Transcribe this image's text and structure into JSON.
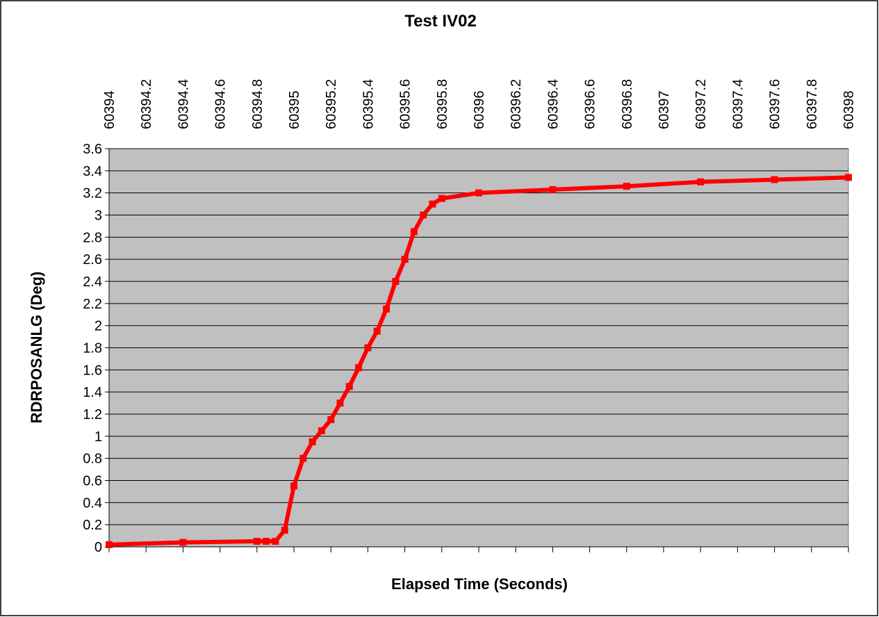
{
  "chart_data": {
    "type": "line",
    "title": "Test IV02",
    "x_label": "Elapsed Time (Seconds)",
    "y_label": "RDRPOSANLG (Deg)",
    "x": [
      60394.0,
      60394.4,
      60394.8,
      60394.85,
      60394.9,
      60394.95,
      60395.0,
      60395.05,
      60395.1,
      60395.15,
      60395.2,
      60395.25,
      60395.3,
      60395.35,
      60395.4,
      60395.45,
      60395.5,
      60395.55,
      60395.6,
      60395.65,
      60395.7,
      60395.75,
      60395.8,
      60396.0,
      60396.4,
      60396.8,
      60397.2,
      60397.6,
      60398.0
    ],
    "series": [
      {
        "color": "#ff0000",
        "values": [
          0.02,
          0.04,
          0.05,
          0.05,
          0.05,
          0.15,
          0.55,
          0.8,
          0.95,
          1.05,
          1.15,
          1.3,
          1.45,
          1.62,
          1.8,
          1.95,
          2.15,
          2.4,
          2.6,
          2.85,
          3.0,
          3.1,
          3.15,
          3.2,
          3.23,
          3.26,
          3.3,
          3.32,
          3.34
        ]
      }
    ],
    "xlim": [
      60394,
      60398
    ],
    "xticks": [
      60394,
      60394.2,
      60394.4,
      60394.6,
      60394.8,
      60395,
      60395.2,
      60395.4,
      60395.6,
      60395.8,
      60396,
      60396.2,
      60396.4,
      60396.6,
      60396.8,
      60397,
      60397.2,
      60397.4,
      60397.6,
      60397.8,
      60398
    ],
    "ylim": [
      0,
      3.6
    ],
    "yticks": [
      0,
      0.2,
      0.4,
      0.6,
      0.8,
      1,
      1.2,
      1.4,
      1.6,
      1.8,
      2,
      2.2,
      2.4,
      2.6,
      2.8,
      3,
      3.2,
      3.4,
      3.6
    ],
    "grid": true,
    "plot_background": "#c0c0c0"
  }
}
